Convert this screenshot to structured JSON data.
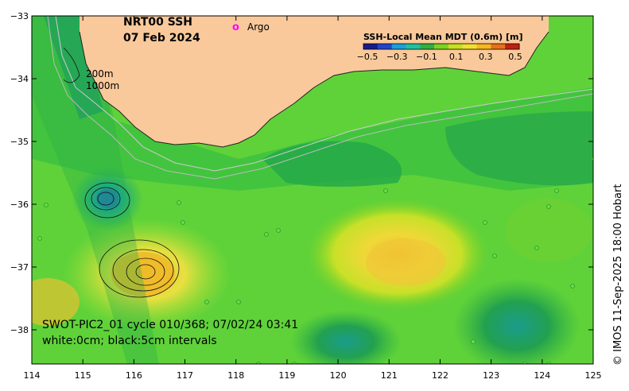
{
  "title": {
    "product": "NRT00 SSH",
    "date": "07 Feb 2024"
  },
  "legend": {
    "argo_symbol": "o",
    "argo_label": "Argo"
  },
  "colorbar": {
    "title": "SSH-Local Mean MDT (0.6m) [m]",
    "ticks": [
      "−0.5",
      "−0.3",
      "−0.1",
      "0.1",
      "0.3",
      "0.5"
    ],
    "colors": [
      "#1a1a8c",
      "#2244cc",
      "#1aa0d8",
      "#20c0a0",
      "#30b040",
      "#7ed321",
      "#c8e020",
      "#f0e030",
      "#f5b820",
      "#e87018",
      "#c02010"
    ]
  },
  "isobaths": {
    "label_200": "200m",
    "label_1000": "1000m"
  },
  "swath_info": {
    "line1": "SWOT-PIC2_01 cycle 010/368; 07/02/24 03:41",
    "line2": "white:0cm; black:5cm intervals"
  },
  "axes": {
    "x_ticks": [
      "114",
      "115",
      "116",
      "117",
      "118",
      "119",
      "120",
      "121",
      "122",
      "123",
      "124",
      "125"
    ],
    "y_ticks": [
      "−33",
      "−34",
      "−35",
      "−36",
      "−37",
      "−38"
    ]
  },
  "credit": "© IMOS 11-Sep-2025 18:00 Hobart",
  "colors": {
    "land": "#f9c99b",
    "ocean_base": "#5fd23a",
    "high_ssh": "#f0e03a",
    "low_ssh": "#22a84a",
    "argo": "#ff00ff"
  }
}
